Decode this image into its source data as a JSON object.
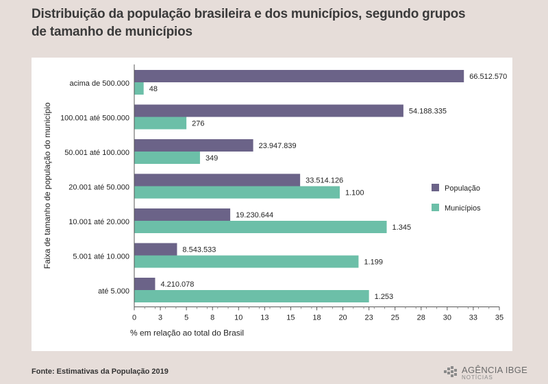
{
  "header": {
    "title": "Distribuição da população brasileira e dos municípios, segundo grupos de tamanho de municípios"
  },
  "footer": {
    "source": "Fonte: Estimativas da População 2019",
    "logo_brand": "AGÊNCIA IBGE",
    "logo_sub": "NOTÍCIAS"
  },
  "colors": {
    "population": "#6b6388",
    "municipalities": "#6cbfa8",
    "page_background": "#e6ddd9",
    "panel_background": "#ffffff"
  },
  "chart_data": {
    "type": "bar",
    "orientation": "horizontal",
    "title": "Distribuição da população brasileira e dos municípios, segundo grupos de tamanho de municípios",
    "xlabel": "% em relação ao total do Brasil",
    "ylabel": "Faixa de tamanho de população do município",
    "xlim": [
      0,
      35
    ],
    "xticks": [
      "0",
      "3",
      "5",
      "8",
      "10",
      "13",
      "15",
      "18",
      "20",
      "23",
      "25",
      "28",
      "30",
      "33",
      "35"
    ],
    "legend_position": "right",
    "grid": false,
    "categories": [
      "acima de 500.000",
      "100.001 até 500.000",
      "50.001 até 100.000",
      "20.001 até 50.000",
      "10.001 até 20.000",
      "5.001 até 10.000",
      "até 5.000"
    ],
    "series": [
      {
        "name": "População",
        "values": [
          31.6,
          25.8,
          11.4,
          15.9,
          9.2,
          4.1,
          2.0
        ],
        "labels": [
          "66.512.570",
          "54.188.335",
          "23.947.839",
          "33.514.126",
          "19.230.644",
          "8.543.533",
          "4.210.078"
        ]
      },
      {
        "name": "Municípios",
        "values": [
          0.9,
          5.0,
          6.3,
          19.7,
          24.2,
          21.5,
          22.5
        ],
        "labels": [
          "48",
          "276",
          "349",
          "1.100",
          "1.345",
          "1.199",
          "1.253"
        ]
      }
    ]
  }
}
